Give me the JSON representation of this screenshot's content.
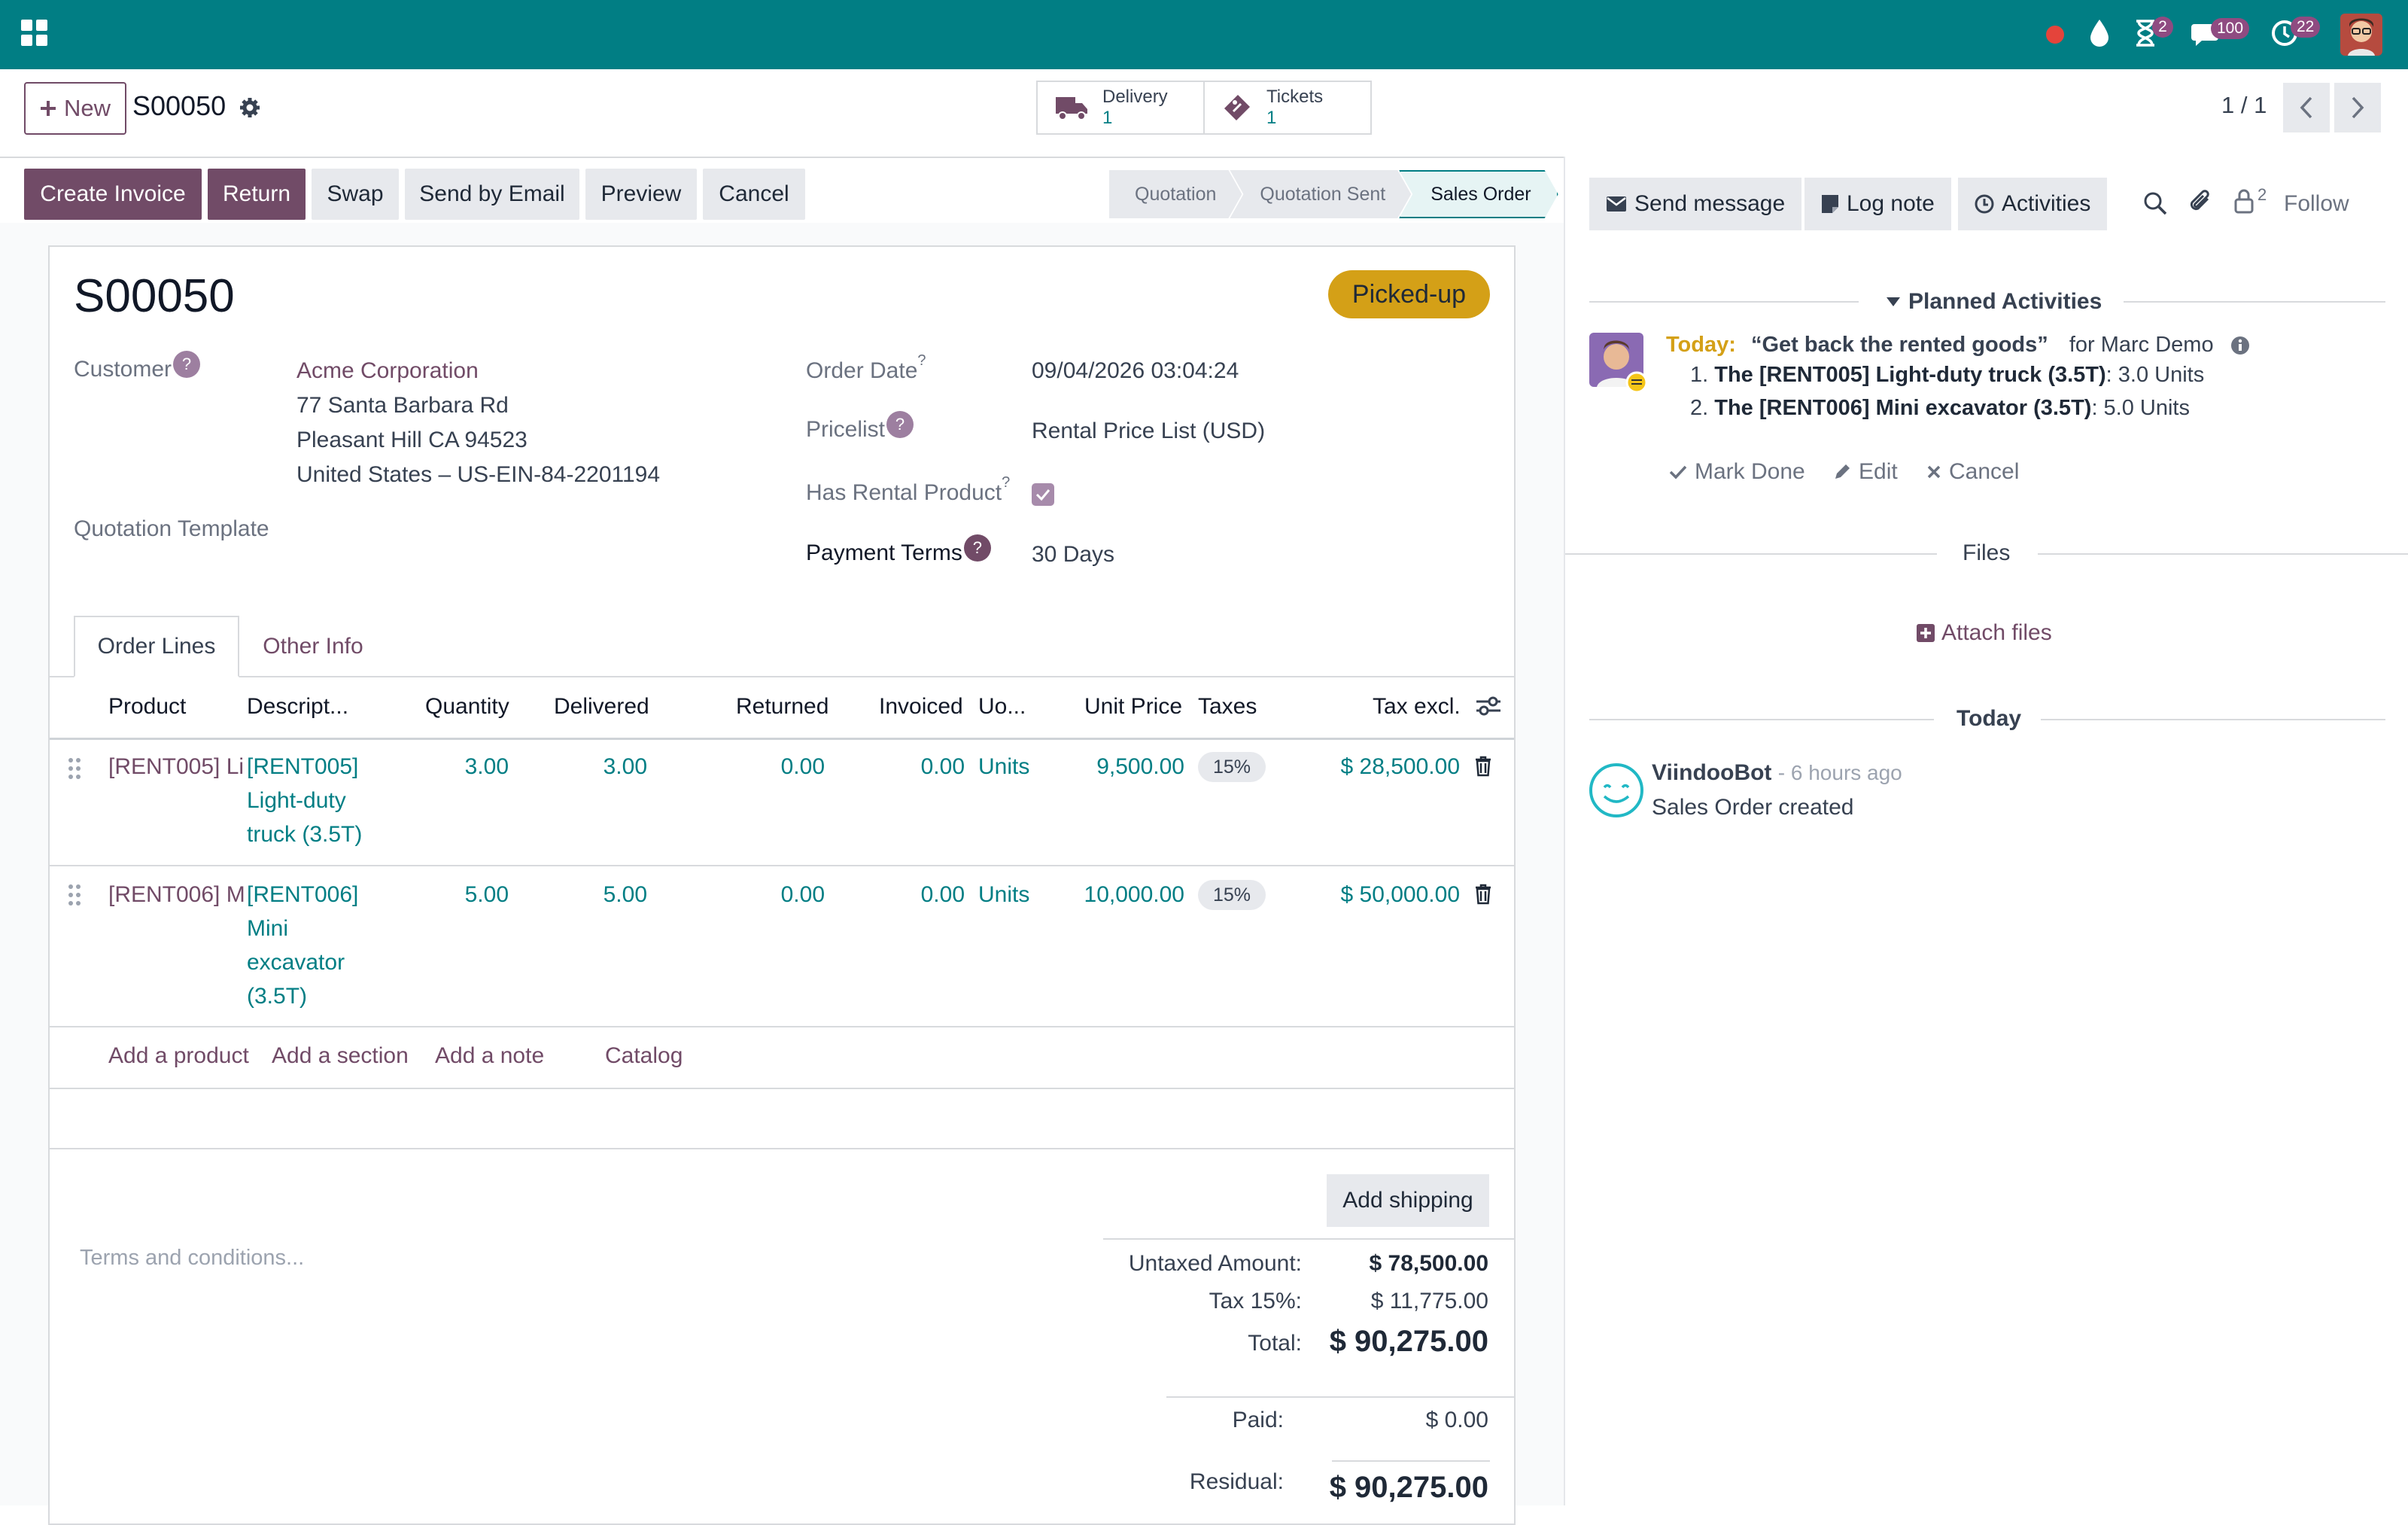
{
  "navbar": {
    "apps_icon": "apps-grid-icon",
    "badges": {
      "activities": "2",
      "messages": "100",
      "timers": "22"
    }
  },
  "control": {
    "new_label": "New",
    "record_name": "S00050",
    "smart_buttons": [
      {
        "label": "Delivery",
        "value": "1",
        "icon": "truck-icon"
      },
      {
        "label": "Tickets",
        "value": "1",
        "icon": "ticket-icon"
      }
    ],
    "pager": "1 / 1"
  },
  "statusbar": {
    "buttons": [
      "Create Invoice",
      "Return",
      "Swap",
      "Send by Email",
      "Preview",
      "Cancel"
    ],
    "stages": [
      "Quotation",
      "Quotation Sent",
      "Sales Order"
    ],
    "active_stage": "Sales Order"
  },
  "form": {
    "name": "S00050",
    "status_badge": "Picked-up",
    "customer_label": "Customer",
    "customer_name": "Acme Corporation",
    "address_line1": "77 Santa Barbara Rd",
    "address_line2": "Pleasant Hill CA 94523",
    "address_line3": "United States – US-EIN-84-2201194",
    "quotation_template_label": "Quotation Template",
    "order_date_label": "Order Date",
    "order_date": "09/04/2026 03:04:24",
    "pricelist_label": "Pricelist",
    "pricelist": "Rental Price List (USD)",
    "has_rental_label": "Has Rental Product",
    "payment_terms_label": "Payment Terms",
    "payment_terms": "30 Days"
  },
  "tabs": [
    "Order Lines",
    "Other Info"
  ],
  "table": {
    "headers": [
      "Product",
      "Descript...",
      "Quantity",
      "Delivered",
      "Returned",
      "Invoiced",
      "Uo...",
      "Unit Price",
      "Taxes",
      "Tax excl."
    ],
    "rows": [
      {
        "product": "[RENT005] Li",
        "desc": [
          "[RENT005]",
          "Light-duty",
          "truck (3.5T)"
        ],
        "quantity": "3.00",
        "delivered": "3.00",
        "returned": "0.00",
        "invoiced": "0.00",
        "uom": "Units",
        "unit_price": "9,500.00",
        "tax": "15%",
        "subtotal": "$ 28,500.00"
      },
      {
        "product": "[RENT006] M",
        "desc": [
          "[RENT006]",
          "Mini",
          "excavator",
          "(3.5T)"
        ],
        "quantity": "5.00",
        "delivered": "5.00",
        "returned": "0.00",
        "invoiced": "0.00",
        "uom": "Units",
        "unit_price": "10,000.00",
        "tax": "15%",
        "subtotal": "$ 50,000.00"
      }
    ],
    "add_links": [
      "Add a product",
      "Add a section",
      "Add a note",
      "Catalog"
    ]
  },
  "footer": {
    "add_shipping": "Add shipping",
    "terms_placeholder": "Terms and conditions...",
    "untaxed_label": "Untaxed Amount:",
    "untaxed": "$ 78,500.00",
    "tax_label": "Tax 15%:",
    "tax": "$ 11,775.00",
    "total_label": "Total:",
    "total": "$ 90,275.00",
    "paid_label": "Paid:",
    "paid": "$ 0.00",
    "residual_label": "Residual:",
    "residual": "$ 90,275.00"
  },
  "chatter": {
    "send_message": "Send message",
    "log_note": "Log note",
    "activities": "Activities",
    "followers_count": "2",
    "follow": "Follow",
    "planned_title": "Planned Activities",
    "activity": {
      "today": "Today:",
      "summary": "“Get back the rented goods”",
      "for_user": "for Marc Demo",
      "items": [
        {
          "num": "1.",
          "name": "The [RENT005] Light-duty truck (3.5T)",
          "qty": ": 3.0 Units"
        },
        {
          "num": "2.",
          "name": "The [RENT006] Mini excavator (3.5T)",
          "qty": ": 5.0 Units"
        }
      ],
      "mark_done": "Mark Done",
      "edit": "Edit",
      "cancel": "Cancel"
    },
    "files_title": "Files",
    "attach_files": "Attach files",
    "today_title": "Today",
    "message": {
      "author": "ViindooBot",
      "time": "- 6 hours ago",
      "body": "Sales Order created"
    }
  },
  "colors": {
    "navbar": "#017e84",
    "primary": "#714b67",
    "link_blue": "#017e84",
    "badge_picked": "#d4a017"
  }
}
